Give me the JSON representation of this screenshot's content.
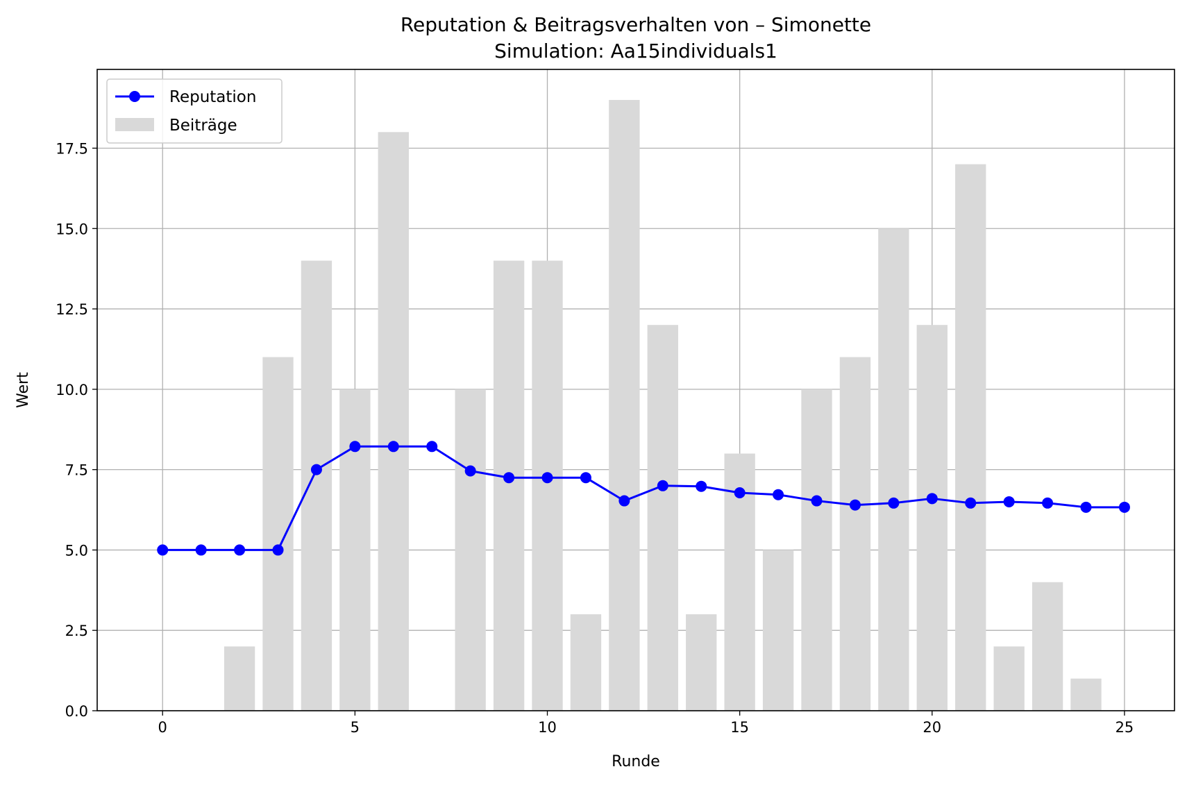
{
  "chart_data": {
    "type": "bar+line",
    "title": "Reputation & Beitragsverhalten von – Simonette",
    "subtitle": "Simulation: Aa15individuals1",
    "xlabel": "Runde",
    "ylabel": "Wert",
    "xlim": [
      -1.7,
      26.3
    ],
    "ylim": [
      0,
      19.95
    ],
    "xticks": [
      0,
      5,
      10,
      15,
      20,
      25
    ],
    "yticks": [
      0.0,
      2.5,
      5.0,
      7.5,
      10.0,
      12.5,
      15.0,
      17.5
    ],
    "grid": true,
    "legend_position": "top-left",
    "colors": {
      "line": "#0000ff",
      "bar": "#d9d9d9",
      "grid": "#b0b0b0"
    },
    "x": [
      0,
      1,
      2,
      3,
      4,
      5,
      6,
      7,
      8,
      9,
      10,
      11,
      12,
      13,
      14,
      15,
      16,
      17,
      18,
      19,
      20,
      21,
      22,
      23,
      24,
      25
    ],
    "series": [
      {
        "name": "Reputation",
        "kind": "line",
        "values": [
          5.0,
          5.0,
          5.0,
          5.0,
          7.5,
          8.22,
          8.22,
          8.22,
          7.46,
          7.25,
          7.25,
          7.25,
          6.53,
          7.0,
          6.98,
          6.78,
          6.72,
          6.53,
          6.4,
          6.46,
          6.6,
          6.46,
          6.5,
          6.46,
          6.33,
          6.33
        ]
      },
      {
        "name": "Beiträge",
        "kind": "bar",
        "values": [
          0,
          0,
          2,
          11,
          14,
          10,
          18,
          0,
          10,
          14,
          14,
          3,
          19,
          12,
          3,
          8,
          5,
          10,
          11,
          15,
          12,
          17,
          2,
          4,
          1,
          0
        ]
      }
    ]
  }
}
